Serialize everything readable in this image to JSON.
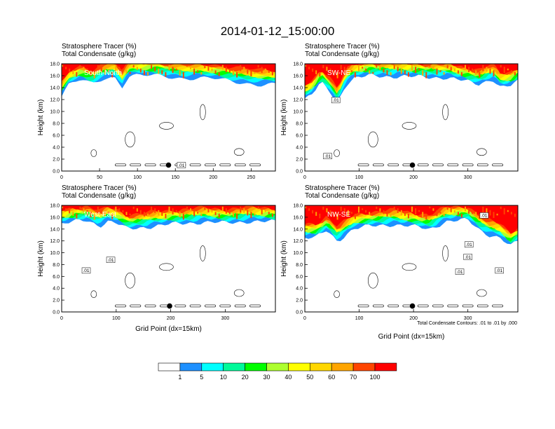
{
  "figure": {
    "title": "2014-01-12_15:00:00",
    "footnote": "Total Condensate Contours: .01 to .01 by .000"
  },
  "chart_data": [
    {
      "type": "heatmap",
      "panel": "top-left",
      "title": "Stratosphere Tracer   (%)",
      "subtitle": "Total Condensate   (g/kg)",
      "region": "South-North",
      "xlabel": "",
      "ylabel": "Height (km)",
      "xlim": [
        0,
        282
      ],
      "ylim": [
        0,
        18
      ],
      "xticks": [
        0,
        50,
        100,
        150,
        200,
        250
      ],
      "yticks": [
        "0.0",
        "2.0",
        "4.0",
        "6.0",
        "8.0",
        "10.0",
        "12.0",
        "14.0",
        "16.0",
        "18.0"
      ],
      "marker": {
        "x": 141,
        "y": 1.0
      },
      "contour_labels": [
        {
          "text": ".01",
          "x": 158,
          "y": 1.0
        }
      ],
      "tracer_lower_boundary_km": [
        [
          0,
          12.5
        ],
        [
          10,
          14.5
        ],
        [
          25,
          15.3
        ],
        [
          40,
          14.6
        ],
        [
          55,
          15.6
        ],
        [
          70,
          15.8
        ],
        [
          80,
          14.2
        ],
        [
          88,
          15.8
        ],
        [
          100,
          16.0
        ],
        [
          130,
          16.0
        ],
        [
          160,
          15.6
        ],
        [
          200,
          15.5
        ],
        [
          230,
          15.0
        ],
        [
          260,
          14.5
        ],
        [
          282,
          14.5
        ]
      ]
    },
    {
      "type": "heatmap",
      "panel": "top-right",
      "title": "Stratosphere Tracer   (%)",
      "subtitle": "Total Condensate   (g/kg)",
      "region": "SW-NE",
      "xlabel": "",
      "ylabel": "Height (km)",
      "xlim": [
        0,
        392
      ],
      "ylim": [
        0,
        18
      ],
      "xticks": [
        0,
        100,
        200,
        300
      ],
      "yticks": [
        "0.0",
        "2.0",
        "4.0",
        "6.0",
        "8.0",
        "10.0",
        "12.0",
        "14.0",
        "16.0",
        "18.0"
      ],
      "marker": {
        "x": 198,
        "y": 1.0
      },
      "contour_labels": [
        {
          "text": ".01",
          "x": 57,
          "y": 11.9
        },
        {
          "text": ".01",
          "x": 42,
          "y": 2.5
        }
      ],
      "tracer_lower_boundary_km": [
        [
          0,
          12.0
        ],
        [
          15,
          13.0
        ],
        [
          30,
          14.8
        ],
        [
          45,
          13.5
        ],
        [
          60,
          11.5
        ],
        [
          75,
          14.5
        ],
        [
          90,
          15.5
        ],
        [
          120,
          16.0
        ],
        [
          200,
          15.8
        ],
        [
          260,
          15.7
        ],
        [
          320,
          14.6
        ],
        [
          345,
          15.5
        ],
        [
          360,
          14.0
        ],
        [
          380,
          14.3
        ],
        [
          392,
          15.0
        ]
      ]
    },
    {
      "type": "heatmap",
      "panel": "bottom-left",
      "title": "Stratosphere Tracer   (%)",
      "subtitle": "Total Condensate   (g/kg)",
      "region": "West-East",
      "xlabel": "Grid Point (dx=15km)",
      "ylabel": "Height (km)",
      "xlim": [
        0,
        392
      ],
      "ylim": [
        0,
        18
      ],
      "xticks": [
        0,
        100,
        200,
        300
      ],
      "yticks": [
        "0.0",
        "2.0",
        "4.0",
        "6.0",
        "8.0",
        "10.0",
        "12.0",
        "14.0",
        "16.0",
        "18.0"
      ],
      "marker": {
        "x": 198,
        "y": 1.0
      },
      "contour_labels": [
        {
          "text": ".01",
          "x": 45,
          "y": 7.0
        },
        {
          "text": ".01",
          "x": 90,
          "y": 8.8
        }
      ],
      "tracer_lower_boundary_km": [
        [
          0,
          14.8
        ],
        [
          20,
          15.2
        ],
        [
          45,
          15.5
        ],
        [
          70,
          14.6
        ],
        [
          85,
          15.3
        ],
        [
          100,
          15.0
        ],
        [
          120,
          14.0
        ],
        [
          150,
          14.3
        ],
        [
          200,
          14.8
        ],
        [
          260,
          15.2
        ],
        [
          300,
          15.0
        ],
        [
          340,
          15.3
        ],
        [
          392,
          15.2
        ]
      ]
    },
    {
      "type": "heatmap",
      "panel": "bottom-right",
      "title": "Stratosphere Tracer   (%)",
      "subtitle": "Total Condensate   (g/kg)",
      "region": "NW-SE",
      "xlabel": "Grid Point (dx=15km)",
      "ylabel": "Height (km)",
      "xlim": [
        0,
        392
      ],
      "ylim": [
        0,
        18
      ],
      "xticks": [
        0,
        100,
        200,
        300
      ],
      "yticks": [
        "0.0",
        "2.0",
        "4.0",
        "6.0",
        "8.0",
        "10.0",
        "12.0",
        "14.0",
        "16.0",
        "18.0"
      ],
      "marker": {
        "x": 198,
        "y": 1.0
      },
      "contour_labels": [
        {
          "text": ".01",
          "x": 302,
          "y": 11.4
        },
        {
          "text": ".01",
          "x": 300,
          "y": 9.3
        },
        {
          "text": ".01",
          "x": 330,
          "y": 16.3
        },
        {
          "text": ".01",
          "x": 285,
          "y": 6.8
        },
        {
          "text": ".01",
          "x": 358,
          "y": 7.0
        }
      ],
      "tracer_lower_boundary_km": [
        [
          0,
          12.5
        ],
        [
          20,
          12.5
        ],
        [
          40,
          13.8
        ],
        [
          60,
          12.0
        ],
        [
          90,
          14.0
        ],
        [
          120,
          14.5
        ],
        [
          160,
          14.8
        ],
        [
          200,
          14.4
        ],
        [
          230,
          14.0
        ],
        [
          260,
          15.3
        ],
        [
          300,
          15.5
        ],
        [
          320,
          14.0
        ],
        [
          340,
          13.0
        ],
        [
          360,
          12.5
        ],
        [
          378,
          11.0
        ],
        [
          392,
          12.0
        ]
      ]
    }
  ],
  "colorbar": {
    "labels": [
      "1",
      "5",
      "10",
      "20",
      "30",
      "40",
      "50",
      "60",
      "70",
      "100"
    ],
    "colors": [
      "#ffffff",
      "#1e90ff",
      "#00ffff",
      "#00fa9a",
      "#00ff00",
      "#adff2f",
      "#ffff00",
      "#ffd700",
      "#ffa500",
      "#ff4500",
      "#ff0000"
    ]
  }
}
